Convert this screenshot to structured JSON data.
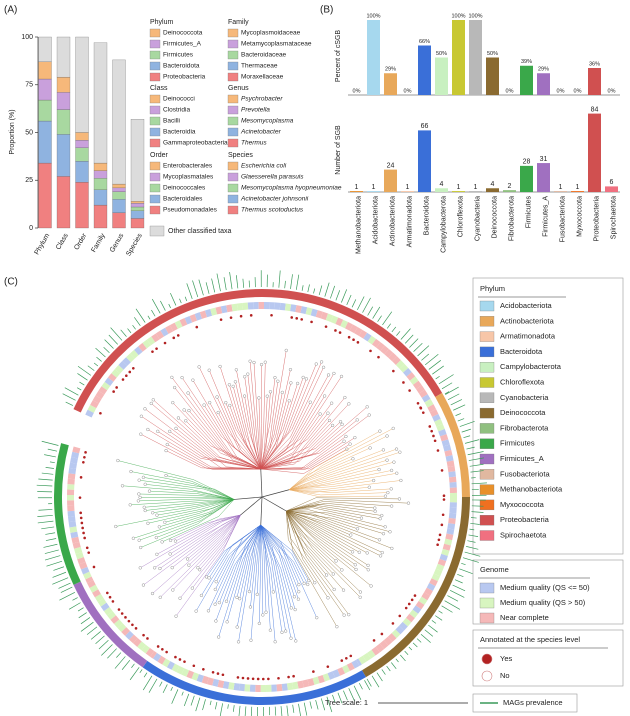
{
  "panel_labels": [
    "(A)",
    "(B)",
    "(C)"
  ],
  "chart_data": [
    {
      "type": "stacked_bar",
      "ylabel": "Proportion (%)",
      "categories": [
        "Phylum",
        "Class",
        "Order",
        "Family",
        "Genus",
        "Species"
      ],
      "ylim": [
        0,
        100
      ],
      "yticks": [
        0,
        25,
        50,
        75,
        100
      ],
      "groups": [
        {
          "title": "Phylum",
          "italic": false,
          "items": [
            {
              "name": "Deinococcota",
              "color": "#f6b87a"
            },
            {
              "name": "Firmicutes_A",
              "color": "#c9a0dc"
            },
            {
              "name": "Firmicutes",
              "color": "#a8d8a0"
            },
            {
              "name": "Bacteroidota",
              "color": "#8fb3e0"
            },
            {
              "name": "Proteobacteria",
              "color": "#f08080"
            }
          ],
          "values": [
            9,
            11,
            11,
            22,
            34
          ]
        },
        {
          "title": "Class",
          "italic": false,
          "items": [
            {
              "name": "Deinococci",
              "color": "#f6b87a"
            },
            {
              "name": "Clostridia",
              "color": "#c9a0dc"
            },
            {
              "name": "Bacilli",
              "color": "#a8d8a0"
            },
            {
              "name": "Bacteroidia",
              "color": "#8fb3e0"
            },
            {
              "name": "Gammaproteobacteria",
              "color": "#f08080"
            }
          ],
          "values": [
            8,
            9,
            13,
            22,
            27
          ]
        },
        {
          "title": "Order",
          "italic": false,
          "items": [
            {
              "name": "Enterobacterales",
              "color": "#f6b87a"
            },
            {
              "name": "Mycoplasmatales",
              "color": "#c9a0dc"
            },
            {
              "name": "Deinococcales",
              "color": "#a8d8a0"
            },
            {
              "name": "Bacteroidales",
              "color": "#8fb3e0"
            },
            {
              "name": "Pseudomonadales",
              "color": "#f08080"
            }
          ],
          "values": [
            4,
            4,
            7,
            11,
            24
          ]
        },
        {
          "title": "Family",
          "italic": false,
          "items": [
            {
              "name": "Mycoplasmoidaceae",
              "color": "#f6b87a"
            },
            {
              "name": "Metamycoplasmataceae",
              "color": "#c9a0dc"
            },
            {
              "name": "Bacteroidaceae",
              "color": "#a8d8a0"
            },
            {
              "name": "Thermaceae",
              "color": "#8fb3e0"
            },
            {
              "name": "Moraxellaceae",
              "color": "#f08080"
            }
          ],
          "values": [
            4,
            4,
            6,
            8,
            12
          ]
        },
        {
          "title": "Genus",
          "italic": true,
          "items": [
            {
              "name": "Psychrobacter",
              "color": "#f6b87a"
            },
            {
              "name": "Prevotella",
              "color": "#c9a0dc"
            },
            {
              "name": "Mesomycoplasma",
              "color": "#a8d8a0"
            },
            {
              "name": "Acinetobacter",
              "color": "#8fb3e0"
            },
            {
              "name": "Thermus",
              "color": "#f08080"
            }
          ],
          "values": [
            2,
            2,
            4,
            7,
            8
          ]
        },
        {
          "title": "Species",
          "italic": true,
          "items": [
            {
              "name": "Escherichia coli",
              "color": "#f6b87a"
            },
            {
              "name": "Glaesserella parasuis",
              "color": "#c9a0dc"
            },
            {
              "name": "Mesomycoplasma hyopneumoniae",
              "color": "#a8d8a0"
            },
            {
              "name": "Acinetobacter johnsonii",
              "color": "#8fb3e0"
            },
            {
              "name": "Thermus scotoductus",
              "color": "#f08080"
            }
          ],
          "values": [
            1,
            2,
            2,
            4,
            5
          ]
        }
      ],
      "other": {
        "name": "Other classified taxa",
        "color": "#dcdcdc",
        "values": [
          13,
          21,
          50,
          63,
          65,
          43
        ]
      }
    },
    {
      "type": "bar",
      "ylabel": "Percent of cSGB",
      "ylim": [
        0,
        100
      ],
      "values": [
        0,
        100,
        29,
        0,
        66,
        50,
        100,
        100,
        50,
        0,
        39,
        29,
        0,
        0,
        36,
        0
      ],
      "value_labels": [
        "0%",
        "100%",
        "29%",
        "0%",
        "66%",
        "50%",
        "100%",
        "100%",
        "50%",
        "0%",
        "39%",
        "29%",
        "0%",
        "0%",
        "36%",
        "0%"
      ],
      "colors": [
        "#e8902a",
        "#a6d8ee",
        "#e8a85a",
        "#f7c6a8",
        "#3a6fd8",
        "#c8f0c0",
        "#c8c832",
        "#b8b8b8",
        "#8a6a30",
        "#90c080",
        "#3aa84a",
        "#a070c0",
        "#e0b8a0",
        "#f07020",
        "#d05050",
        "#f07080"
      ]
    },
    {
      "type": "bar",
      "ylabel": "Number of SGB",
      "ylim": [
        0,
        90
      ],
      "categories": [
        "Methanobacteriota",
        "Acidobacteriota",
        "Actinobacteriota",
        "Armatimonadota",
        "Bacteroidota",
        "Campylobacterota",
        "Chloroflexota",
        "Cyanobacteria",
        "Deinococcota",
        "Fibrobacterota",
        "Firmicutes",
        "Firmicutes_A",
        "Fusobacteriota",
        "Myxococcota",
        "Proteobacteria",
        "Spirochaetota"
      ],
      "values": [
        1,
        1,
        24,
        1,
        66,
        4,
        1,
        1,
        4,
        2,
        28,
        31,
        1,
        1,
        84,
        6
      ],
      "colors": [
        "#e8902a",
        "#a6d8ee",
        "#e8a85a",
        "#f7c6a8",
        "#3a6fd8",
        "#c8f0c0",
        "#c8c832",
        "#b8b8b8",
        "#8a6a30",
        "#90c080",
        "#3aa84a",
        "#a070c0",
        "#e0b8a0",
        "#f07020",
        "#d05050",
        "#f07080"
      ]
    }
  ],
  "tree": {
    "phylum_title": "Phylum",
    "phyla": [
      {
        "name": "Acidobacteriota",
        "color": "#a6d8ee"
      },
      {
        "name": "Actinobacteriota",
        "color": "#e8a85a"
      },
      {
        "name": "Armatimonadota",
        "color": "#f7c6a8"
      },
      {
        "name": "Bacteroidota",
        "color": "#3a6fd8"
      },
      {
        "name": "Campylobacterota",
        "color": "#c8f0c0"
      },
      {
        "name": "Chloroflexota",
        "color": "#c8c832"
      },
      {
        "name": "Cyanobacteria",
        "color": "#b8b8b8"
      },
      {
        "name": "Deinococcota",
        "color": "#8a6a30"
      },
      {
        "name": "Fibrobacterota",
        "color": "#90c080"
      },
      {
        "name": "Firmicutes",
        "color": "#3aa84a"
      },
      {
        "name": "Firmicutes_A",
        "color": "#a070c0"
      },
      {
        "name": "Fusobacteriota",
        "color": "#e0b8a0"
      },
      {
        "name": "Methanobacteriota",
        "color": "#e8902a"
      },
      {
        "name": "Myxococcota",
        "color": "#f07020"
      },
      {
        "name": "Proteobacteria",
        "color": "#d05050"
      },
      {
        "name": "Spirochaetota",
        "color": "#f07080"
      }
    ],
    "genome_title": "Genome",
    "genome": [
      {
        "name": "Medium quality (QS <= 50)",
        "color": "#b8c8f0"
      },
      {
        "name": "Medium quality (QS > 50)",
        "color": "#d8f5c0"
      },
      {
        "name": "Near complete",
        "color": "#f5b8b8"
      }
    ],
    "annot_title": "Annotated at the species level",
    "annot": [
      {
        "name": "Yes",
        "color": "#b22222"
      },
      {
        "name": "No",
        "color": "#ffffff"
      }
    ],
    "scale_label": "Tree scale: 1",
    "prevalence_label": "MAGs prevalence"
  }
}
